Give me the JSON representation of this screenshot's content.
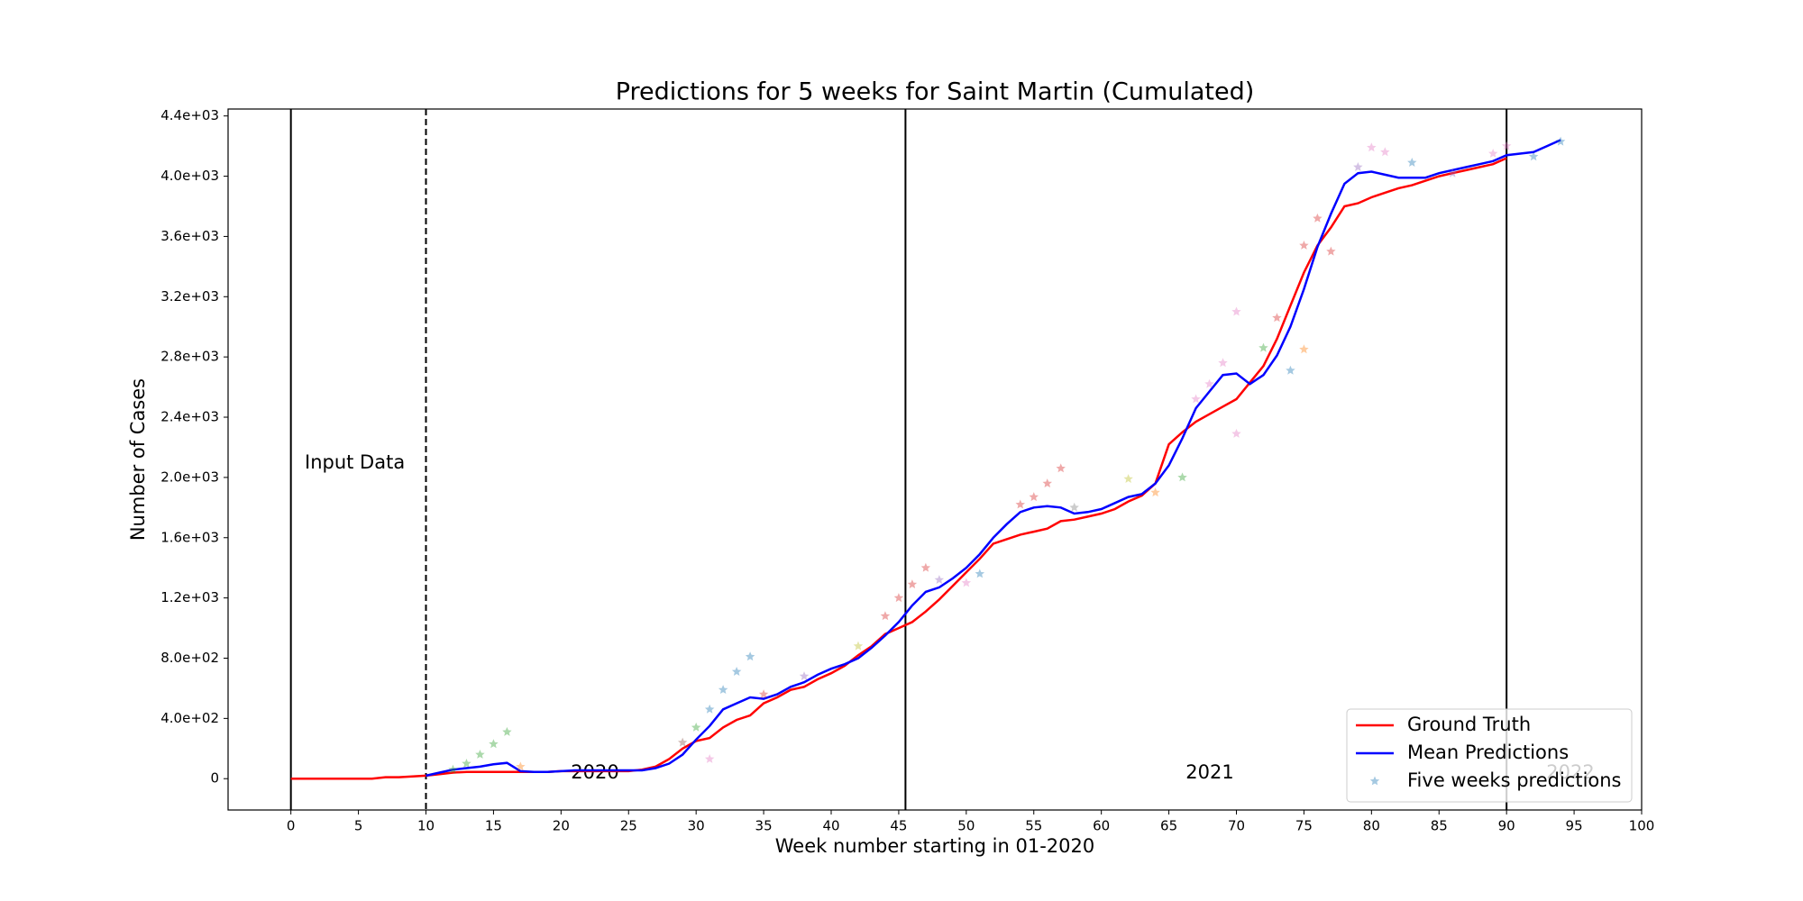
{
  "chart_data": {
    "type": "line",
    "title": "Predictions for 5 weeks for Saint Martin (Cumulated)",
    "x_label": "Week number starting in 01-2020",
    "y_label": "Number of Cases",
    "xlim": [
      -4.65,
      100
    ],
    "ylim": [
      -208,
      4446
    ],
    "xticks": [
      0,
      5,
      10,
      15,
      20,
      25,
      30,
      35,
      40,
      45,
      50,
      55,
      60,
      65,
      70,
      75,
      80,
      85,
      90,
      95,
      100
    ],
    "yticks": [
      0,
      {
        "value": 400,
        "label": "4.0e+02"
      },
      {
        "value": 800,
        "label": "8.0e+02"
      },
      {
        "value": 1200,
        "label": "1.2e+03"
      },
      {
        "value": 1600,
        "label": "1.6e+03"
      },
      {
        "value": 2000,
        "label": "2.0e+03"
      },
      {
        "value": 2400,
        "label": "2.4e+03"
      },
      {
        "value": 2800,
        "label": "2.8e+03"
      },
      {
        "value": 3200,
        "label": "3.2e+03"
      },
      {
        "value": 3600,
        "label": "3.6e+03"
      },
      {
        "value": 4000,
        "label": "4.0e+03"
      },
      {
        "value": 4400,
        "label": "4.4e+03"
      }
    ],
    "grid": false,
    "legend": "lower right",
    "vlines": [
      {
        "x": 0,
        "style": "solid"
      },
      {
        "x": 10,
        "style": "dashed"
      },
      {
        "x": 45.5,
        "style": "solid"
      },
      {
        "x": 90,
        "style": "solid"
      }
    ],
    "annotations": [
      "Input Data",
      "2020",
      "2021",
      "2022"
    ],
    "series": [
      {
        "name": "Ground Truth",
        "type": "line",
        "color": "#ff0000",
        "x": [
          0,
          1,
          2,
          3,
          4,
          5,
          6,
          7,
          8,
          9,
          10,
          11,
          12,
          13,
          14,
          15,
          16,
          17,
          18,
          19,
          20,
          21,
          22,
          23,
          24,
          25,
          26,
          27,
          28,
          29,
          30,
          31,
          32,
          33,
          34,
          35,
          36,
          37,
          38,
          39,
          40,
          41,
          42,
          43,
          44,
          45,
          46,
          47,
          48,
          49,
          50,
          51,
          52,
          53,
          54,
          55,
          56,
          57,
          58,
          59,
          60,
          61,
          62,
          63,
          64,
          65,
          66,
          67,
          68,
          69,
          70,
          71,
          72,
          73,
          74,
          75,
          76,
          77,
          78,
          79,
          80,
          81,
          82,
          83,
          84,
          85,
          86,
          87,
          88,
          89,
          90
        ],
        "values": [
          0,
          0,
          0,
          0,
          0,
          0,
          0,
          10,
          10,
          15,
          20,
          30,
          40,
          45,
          45,
          45,
          45,
          45,
          45,
          45,
          50,
          50,
          50,
          50,
          50,
          50,
          60,
          80,
          130,
          200,
          250,
          270,
          340,
          390,
          420,
          500,
          540,
          590,
          610,
          660,
          700,
          750,
          820,
          880,
          960,
          1000,
          1040,
          1110,
          1190,
          1280,
          1370,
          1460,
          1560,
          1590,
          1620,
          1640,
          1660,
          1710,
          1720,
          1740,
          1760,
          1790,
          1840,
          1880,
          1960,
          2220,
          2300,
          2370,
          2420,
          2470,
          2520,
          2630,
          2740,
          2920,
          3140,
          3360,
          3540,
          3660,
          3800,
          3820,
          3860,
          3890,
          3920,
          3940,
          3970,
          4000,
          4020,
          4040,
          4060,
          4080,
          4120
        ]
      },
      {
        "name": "Mean Predictions",
        "type": "line",
        "color": "#0000ff",
        "x": [
          10,
          11,
          12,
          13,
          14,
          15,
          16,
          17,
          18,
          19,
          20,
          21,
          22,
          23,
          24,
          25,
          26,
          27,
          28,
          29,
          30,
          31,
          32,
          33,
          34,
          35,
          36,
          37,
          38,
          39,
          40,
          41,
          42,
          43,
          44,
          45,
          46,
          47,
          48,
          49,
          50,
          51,
          52,
          53,
          54,
          55,
          56,
          57,
          58,
          59,
          60,
          61,
          62,
          63,
          64,
          65,
          66,
          67,
          68,
          69,
          70,
          71,
          72,
          73,
          74,
          75,
          76,
          77,
          78,
          79,
          80,
          81,
          82,
          83,
          84,
          85,
          86,
          87,
          88,
          89,
          90,
          91,
          92,
          93,
          94
        ],
        "values": [
          20,
          40,
          60,
          70,
          80,
          95,
          105,
          50,
          45,
          45,
          50,
          55,
          55,
          55,
          55,
          55,
          55,
          70,
          100,
          160,
          260,
          350,
          460,
          500,
          540,
          530,
          560,
          610,
          640,
          690,
          730,
          760,
          800,
          870,
          950,
          1040,
          1150,
          1240,
          1270,
          1330,
          1400,
          1490,
          1600,
          1690,
          1770,
          1800,
          1810,
          1800,
          1760,
          1770,
          1790,
          1830,
          1870,
          1890,
          1960,
          2080,
          2260,
          2460,
          2570,
          2680,
          2690,
          2620,
          2680,
          2810,
          3000,
          3250,
          3530,
          3750,
          3950,
          4020,
          4030,
          4010,
          3990,
          3990,
          3990,
          4020,
          4040,
          4060,
          4080,
          4100,
          4140,
          4150,
          4160,
          4200,
          4240
        ]
      },
      {
        "name": "Five weeks predictions",
        "type": "scatter",
        "color": "#1f77b4",
        "point_colors": [
          "#2ca02c",
          "#2ca02c",
          "#2ca02c",
          "#2ca02c",
          "#2ca02c",
          "#ff7f0e",
          "#8c564b",
          "#2ca02c",
          "#1f77b4",
          "#1f77b4",
          "#1f77b4",
          "#1f77b4",
          "#e377c2",
          "#d62728",
          "#9467bd",
          "#bcbd22",
          "#d62728",
          "#d62728",
          "#d62728",
          "#d62728",
          "#9467bd",
          "#e377c2",
          "#1f77b4",
          "#d62728",
          "#d62728",
          "#d62728",
          "#d62728",
          "#7f7f7f",
          "#bcbd22",
          "#ff7f0e",
          "#2ca02c",
          "#e377c2",
          "#e377c2",
          "#e377c2",
          "#e377c2",
          "#e377c2",
          "#2ca02c",
          "#d62728",
          "#1f77b4",
          "#ff7f0e",
          "#d62728",
          "#d62728",
          "#d62728",
          "#9467bd",
          "#e377c2",
          "#e377c2",
          "#1f77b4",
          "#9467bd",
          "#e377c2",
          "#e377c2",
          "#1f77b4",
          "#1f77b4"
        ],
        "x": [
          12,
          13,
          14,
          15,
          16,
          17,
          29,
          30,
          31,
          32,
          33,
          34,
          31,
          35,
          38,
          42,
          44,
          45,
          46,
          47,
          48,
          50,
          51,
          54,
          55,
          56,
          57,
          58,
          62,
          64,
          66,
          67,
          68,
          69,
          70,
          70,
          72,
          73,
          74,
          75,
          75,
          76,
          77,
          79,
          80,
          81,
          83,
          86,
          89,
          90,
          92,
          94
        ],
        "values": [
          60,
          100,
          160,
          230,
          310,
          80,
          240,
          340,
          460,
          590,
          710,
          810,
          130,
          560,
          680,
          880,
          1080,
          1200,
          1290,
          1400,
          1320,
          1300,
          1360,
          1820,
          1870,
          1960,
          2060,
          1800,
          1990,
          1900,
          2000,
          2520,
          2620,
          2760,
          3100,
          2290,
          2860,
          3060,
          2710,
          2850,
          3540,
          3720,
          3500,
          4060,
          4190,
          4160,
          4090,
          4020,
          4150,
          4200,
          4130,
          4230
        ]
      }
    ]
  }
}
